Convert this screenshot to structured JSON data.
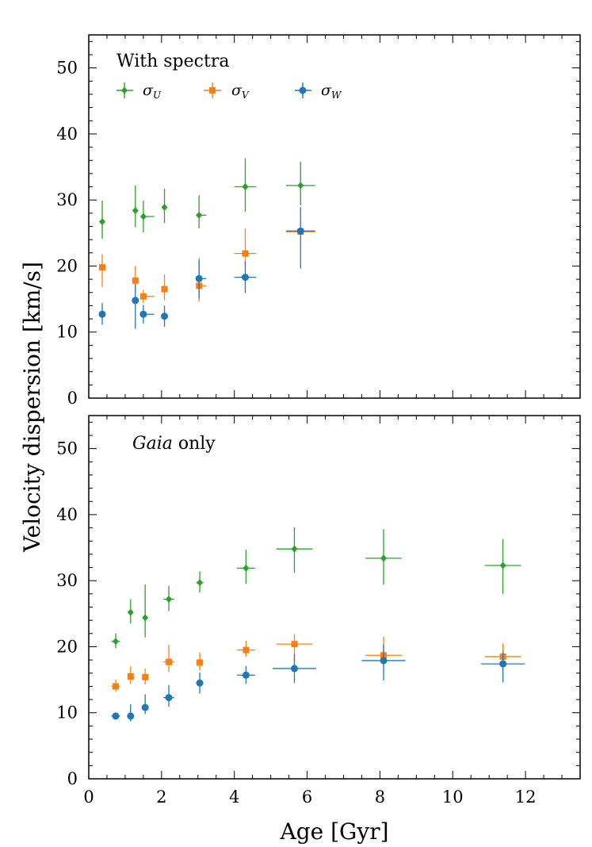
{
  "figure": {
    "ylabel": "Velocity dispersion [km/s]",
    "xlabel": "Age [Gyr]"
  },
  "legend": [
    {
      "symbol": "σ",
      "sub": "U",
      "color": "#2ca02c",
      "marker": "diamond"
    },
    {
      "symbol": "σ",
      "sub": "V",
      "color": "#ff7f0e",
      "marker": "square"
    },
    {
      "symbol": "σ",
      "sub": "W",
      "color": "#1f77b4",
      "marker": "circle"
    }
  ],
  "chart_data": [
    {
      "type": "scatter",
      "title": "With spectra",
      "title_italic_part": "",
      "title_rest": "",
      "xlim": [
        0,
        13.5
      ],
      "ylim": [
        0,
        55
      ],
      "xticks": [
        0,
        2,
        4,
        6,
        8,
        10,
        12
      ],
      "yticks": [
        0,
        10,
        20,
        30,
        40,
        50
      ],
      "xlabel": "",
      "ylabel": "Velocity dispersion [km/s]",
      "legend": "top-left",
      "series": [
        {
          "name": "σ_U",
          "color": "#2ca02c",
          "marker": "diamond",
          "points": [
            {
              "x": 0.37,
              "y": 26.7,
              "xerr": [
                0.05,
                0.05
              ],
              "yerr": [
                2.6,
                3.2
              ]
            },
            {
              "x": 1.28,
              "y": 28.4,
              "xerr": [
                0.05,
                0.05
              ],
              "yerr": [
                2.5,
                3.8
              ]
            },
            {
              "x": 1.5,
              "y": 27.5,
              "xerr": [
                0.05,
                0.3
              ],
              "yerr": [
                2.4,
                2.4
              ]
            },
            {
              "x": 2.08,
              "y": 28.9,
              "xerr": [
                0.05,
                0.05
              ],
              "yerr": [
                2.4,
                2.8
              ]
            },
            {
              "x": 3.03,
              "y": 27.7,
              "xerr": [
                0.05,
                0.2
              ],
              "yerr": [
                2.0,
                3.0
              ]
            },
            {
              "x": 4.3,
              "y": 32.0,
              "xerr": [
                0.3,
                0.3
              ],
              "yerr": [
                3.8,
                4.3
              ]
            },
            {
              "x": 5.82,
              "y": 32.2,
              "xerr": [
                0.4,
                0.4
              ],
              "yerr": [
                3.0,
                3.6
              ]
            }
          ]
        },
        {
          "name": "σ_V",
          "color": "#ff7f0e",
          "marker": "square",
          "points": [
            {
              "x": 0.37,
              "y": 19.8,
              "xerr": [
                0.05,
                0.05
              ],
              "yerr": [
                3.0,
                2.0
              ]
            },
            {
              "x": 1.28,
              "y": 17.8,
              "xerr": [
                0.05,
                0.05
              ],
              "yerr": [
                1.8,
                2.2
              ]
            },
            {
              "x": 1.5,
              "y": 15.4,
              "xerr": [
                0.05,
                0.3
              ],
              "yerr": [
                1.0,
                1.0
              ]
            },
            {
              "x": 2.08,
              "y": 16.5,
              "xerr": [
                0.05,
                0.05
              ],
              "yerr": [
                1.7,
                2.2
              ]
            },
            {
              "x": 3.03,
              "y": 17.0,
              "xerr": [
                0.05,
                0.2
              ],
              "yerr": [
                2.4,
                4.2
              ]
            },
            {
              "x": 4.3,
              "y": 21.9,
              "xerr": [
                0.3,
                0.3
              ],
              "yerr": [
                2.0,
                3.8
              ]
            },
            {
              "x": 5.82,
              "y": 25.2,
              "xerr": [
                0.4,
                0.4
              ],
              "yerr": [
                0.5,
                0.5
              ]
            }
          ]
        },
        {
          "name": "σ_W",
          "color": "#1f77b4",
          "marker": "circle",
          "points": [
            {
              "x": 0.37,
              "y": 12.7,
              "xerr": [
                0.05,
                0.05
              ],
              "yerr": [
                1.6,
                1.7
              ]
            },
            {
              "x": 1.28,
              "y": 14.8,
              "xerr": [
                0.05,
                0.05
              ],
              "yerr": [
                4.3,
                2.5
              ]
            },
            {
              "x": 1.5,
              "y": 12.7,
              "xerr": [
                0.05,
                0.3
              ],
              "yerr": [
                1.4,
                1.4
              ]
            },
            {
              "x": 2.08,
              "y": 12.4,
              "xerr": [
                0.05,
                0.05
              ],
              "yerr": [
                1.6,
                1.6
              ]
            },
            {
              "x": 3.03,
              "y": 18.1,
              "xerr": [
                0.05,
                0.2
              ],
              "yerr": [
                3.0,
                2.8
              ]
            },
            {
              "x": 4.3,
              "y": 18.3,
              "xerr": [
                0.3,
                0.3
              ],
              "yerr": [
                2.4,
                2.4
              ]
            },
            {
              "x": 5.82,
              "y": 25.3,
              "xerr": [
                0.4,
                0.4
              ],
              "yerr": [
                5.7,
                3.6
              ]
            }
          ]
        }
      ]
    },
    {
      "type": "scatter",
      "title": "",
      "title_italic_part": "Gaia",
      "title_rest": " only",
      "xlim": [
        0,
        13.5
      ],
      "ylim": [
        0,
        55
      ],
      "xticks": [
        0,
        2,
        4,
        6,
        8,
        10,
        12
      ],
      "yticks": [
        0,
        10,
        20,
        30,
        40,
        50
      ],
      "xlabel": "Age [Gyr]",
      "ylabel": "Velocity dispersion [km/s]",
      "series": [
        {
          "name": "σ_U",
          "color": "#2ca02c",
          "marker": "diamond",
          "points": [
            {
              "x": 0.74,
              "y": 20.8,
              "xerr": [
                0.12,
                0.12
              ],
              "yerr": [
                1.0,
                1.2
              ]
            },
            {
              "x": 1.15,
              "y": 25.2,
              "xerr": [
                0.05,
                0.05
              ],
              "yerr": [
                1.7,
                2.0
              ]
            },
            {
              "x": 1.55,
              "y": 24.4,
              "xerr": [
                0.05,
                0.05
              ],
              "yerr": [
                3.0,
                5.0
              ]
            },
            {
              "x": 2.2,
              "y": 27.2,
              "xerr": [
                0.15,
                0.15
              ],
              "yerr": [
                1.8,
                2.0
              ]
            },
            {
              "x": 3.05,
              "y": 29.7,
              "xerr": [
                0.1,
                0.1
              ],
              "yerr": [
                1.5,
                1.7
              ]
            },
            {
              "x": 4.32,
              "y": 31.9,
              "xerr": [
                0.25,
                0.25
              ],
              "yerr": [
                2.4,
                2.8
              ]
            },
            {
              "x": 5.65,
              "y": 34.8,
              "xerr": [
                0.5,
                0.5
              ],
              "yerr": [
                3.6,
                3.3
              ]
            },
            {
              "x": 8.1,
              "y": 33.4,
              "xerr": [
                0.5,
                0.5
              ],
              "yerr": [
                4.0,
                4.4
              ]
            },
            {
              "x": 11.38,
              "y": 32.3,
              "xerr": [
                0.5,
                0.5
              ],
              "yerr": [
                4.3,
                4.0
              ]
            }
          ]
        },
        {
          "name": "σ_V",
          "color": "#ff7f0e",
          "marker": "square",
          "points": [
            {
              "x": 0.74,
              "y": 14.0,
              "xerr": [
                0.12,
                0.12
              ],
              "yerr": [
                0.8,
                1.0
              ]
            },
            {
              "x": 1.15,
              "y": 15.5,
              "xerr": [
                0.05,
                0.05
              ],
              "yerr": [
                1.1,
                1.5
              ]
            },
            {
              "x": 1.55,
              "y": 15.4,
              "xerr": [
                0.05,
                0.05
              ],
              "yerr": [
                1.1,
                1.3
              ]
            },
            {
              "x": 2.2,
              "y": 17.7,
              "xerr": [
                0.15,
                0.15
              ],
              "yerr": [
                1.5,
                2.6
              ]
            },
            {
              "x": 3.05,
              "y": 17.6,
              "xerr": [
                0.1,
                0.1
              ],
              "yerr": [
                1.2,
                1.5
              ]
            },
            {
              "x": 4.32,
              "y": 19.5,
              "xerr": [
                0.25,
                0.25
              ],
              "yerr": [
                1.0,
                1.4
              ]
            },
            {
              "x": 5.65,
              "y": 20.4,
              "xerr": [
                0.5,
                0.5
              ],
              "yerr": [
                2.4,
                1.5
              ]
            },
            {
              "x": 8.1,
              "y": 18.7,
              "xerr": [
                0.5,
                0.5
              ],
              "yerr": [
                1.5,
                2.8
              ]
            },
            {
              "x": 11.38,
              "y": 18.5,
              "xerr": [
                0.5,
                0.5
              ],
              "yerr": [
                1.2,
                2.0
              ]
            }
          ]
        },
        {
          "name": "σ_W",
          "color": "#1f77b4",
          "marker": "circle",
          "points": [
            {
              "x": 0.74,
              "y": 9.5,
              "xerr": [
                0.12,
                0.12
              ],
              "yerr": [
                0.3,
                0.3
              ]
            },
            {
              "x": 1.15,
              "y": 9.5,
              "xerr": [
                0.05,
                0.05
              ],
              "yerr": [
                0.8,
                1.8
              ]
            },
            {
              "x": 1.55,
              "y": 10.8,
              "xerr": [
                0.05,
                0.05
              ],
              "yerr": [
                1.0,
                2.0
              ]
            },
            {
              "x": 2.2,
              "y": 12.3,
              "xerr": [
                0.15,
                0.15
              ],
              "yerr": [
                1.4,
                1.9
              ]
            },
            {
              "x": 3.05,
              "y": 14.5,
              "xerr": [
                0.1,
                0.1
              ],
              "yerr": [
                1.6,
                1.6
              ]
            },
            {
              "x": 4.32,
              "y": 15.7,
              "xerr": [
                0.25,
                0.25
              ],
              "yerr": [
                1.3,
                1.4
              ]
            },
            {
              "x": 5.65,
              "y": 16.7,
              "xerr": [
                0.6,
                0.6
              ],
              "yerr": [
                2.2,
                2.2
              ]
            },
            {
              "x": 8.1,
              "y": 17.9,
              "xerr": [
                0.6,
                0.6
              ],
              "yerr": [
                3.0,
                2.4
              ]
            },
            {
              "x": 11.38,
              "y": 17.4,
              "xerr": [
                0.6,
                0.6
              ],
              "yerr": [
                2.8,
                1.9
              ]
            }
          ]
        }
      ]
    }
  ]
}
